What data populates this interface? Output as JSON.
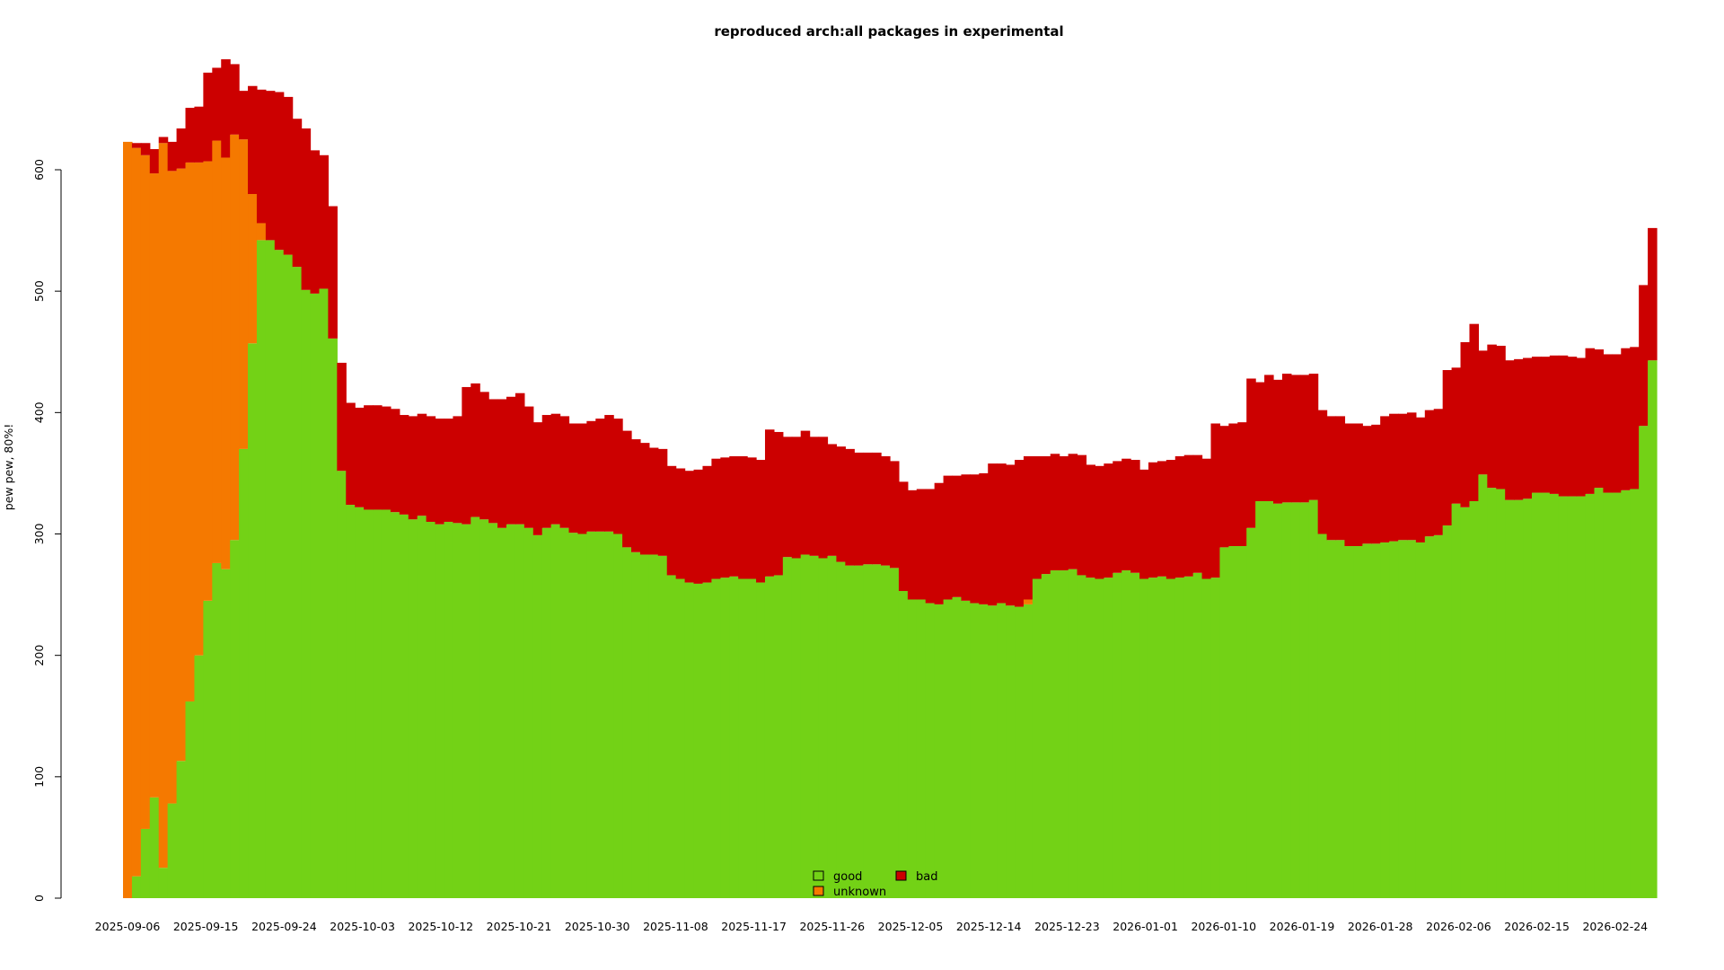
{
  "chart_data": {
    "type": "area",
    "stacked": true,
    "title": "reproduced arch:all packages in experimental",
    "xlabel": "",
    "ylabel": "pew pew, 80%!",
    "ylim": [
      0,
      690
    ],
    "x_start": "2025-09-06",
    "x_end": "2026-02-28",
    "x_tick_labels": [
      "2025-09-06",
      "2025-09-15",
      "2025-09-24",
      "2025-10-03",
      "2025-10-12",
      "2025-10-21",
      "2025-10-30",
      "2025-11-08",
      "2025-11-17",
      "2025-11-26",
      "2025-12-05",
      "2025-12-14",
      "2025-12-23",
      "2026-01-01",
      "2026-01-10",
      "2026-01-19",
      "2026-01-28",
      "2026-02-06",
      "2026-02-15",
      "2026-02-24"
    ],
    "y_ticks": [
      0,
      100,
      200,
      300,
      400,
      500,
      600
    ],
    "legend": {
      "position": "bottom-center",
      "entries": [
        {
          "name": "good",
          "color": "#73d216"
        },
        {
          "name": "bad",
          "color": "#cc0000"
        },
        {
          "name": "unknown",
          "color": "#f57900"
        }
      ]
    },
    "series": [
      {
        "name": "good",
        "color": "#73d216",
        "values": [
          0,
          18,
          57,
          83,
          25,
          78,
          113,
          162,
          200,
          245,
          276,
          271,
          295,
          370,
          457,
          542,
          542,
          534,
          530,
          520,
          501,
          498,
          502,
          461,
          352,
          324,
          322,
          320,
          320,
          320,
          318,
          316,
          312,
          315,
          310,
          308,
          310,
          309,
          308,
          314,
          312,
          309,
          305,
          308,
          308,
          305,
          299,
          305,
          308,
          305,
          301,
          300,
          302,
          302,
          302,
          300,
          289,
          285,
          283,
          283,
          282,
          266,
          263,
          260,
          259,
          260,
          263,
          264,
          265,
          263,
          263,
          260,
          265,
          266,
          281,
          280,
          283,
          282,
          280,
          282,
          277,
          274,
          274,
          275,
          275,
          274,
          272,
          253,
          246,
          246,
          243,
          242,
          246,
          248,
          245,
          243,
          242,
          241,
          243,
          241,
          240,
          242,
          263,
          267,
          270,
          270,
          271,
          266,
          264,
          263,
          264,
          268,
          270,
          268,
          263,
          264,
          265,
          263,
          264,
          265,
          268,
          263,
          264,
          289,
          290,
          290,
          305,
          327,
          327,
          325,
          326,
          326,
          326,
          328,
          300,
          295,
          295,
          290,
          290,
          292,
          292,
          293,
          294,
          295,
          295,
          293,
          298,
          299,
          307,
          325,
          322,
          327,
          349,
          338,
          337,
          328,
          328,
          329,
          334,
          334,
          333,
          331,
          331,
          331,
          333,
          338,
          334,
          334,
          336,
          337,
          389,
          443
        ]
      },
      {
        "name": "unknown",
        "color": "#f57900",
        "values": [
          623,
          600,
          555,
          514,
          597,
          521,
          488,
          444,
          406,
          362,
          348,
          339,
          334,
          255,
          123,
          14,
          0,
          0,
          0,
          0,
          0,
          0,
          0,
          0,
          0,
          0,
          0,
          0,
          0,
          0,
          0,
          0,
          0,
          0,
          0,
          0,
          0,
          0,
          0,
          0,
          0,
          0,
          0,
          0,
          0,
          0,
          0,
          0,
          0,
          0,
          0,
          0,
          0,
          0,
          0,
          0,
          0,
          0,
          0,
          0,
          0,
          0,
          0,
          0,
          0,
          0,
          0,
          0,
          0,
          0,
          0,
          0,
          0,
          0,
          0,
          0,
          0,
          0,
          0,
          0,
          0,
          0,
          0,
          0,
          0,
          0,
          0,
          0,
          0,
          0,
          0,
          0,
          0,
          0,
          0,
          0,
          0,
          0,
          0,
          0,
          0,
          4,
          0,
          0,
          0,
          0,
          0,
          0,
          0,
          0,
          0,
          0,
          0,
          0,
          0,
          0,
          0,
          0,
          0,
          0,
          0,
          0,
          0,
          0,
          0,
          0,
          0,
          0,
          0,
          0,
          0,
          0,
          0,
          0,
          0,
          0,
          0,
          0,
          0,
          0,
          0,
          0,
          0,
          0,
          0,
          0,
          0,
          0,
          0,
          0,
          0,
          0,
          0,
          0,
          0,
          0,
          0,
          0,
          0,
          0,
          0,
          0,
          0,
          0,
          0,
          0,
          0,
          0,
          0,
          0,
          0,
          0,
          0,
          0
        ]
      },
      {
        "name": "bad",
        "color": "#cc0000",
        "values": [
          0,
          4,
          10,
          20,
          5,
          24,
          33,
          45,
          46,
          73,
          60,
          81,
          58,
          40,
          89,
          110,
          123,
          130,
          130,
          122,
          133,
          118,
          110,
          109,
          89,
          84,
          82,
          86,
          86,
          85,
          85,
          82,
          85,
          84,
          87,
          87,
          85,
          88,
          113,
          110,
          105,
          102,
          106,
          105,
          108,
          100,
          93,
          93,
          91,
          92,
          90,
          91,
          91,
          93,
          96,
          95,
          96,
          93,
          92,
          88,
          88,
          90,
          91,
          92,
          94,
          96,
          99,
          99,
          99,
          101,
          100,
          101,
          121,
          118,
          99,
          100,
          102,
          98,
          100,
          92,
          95,
          96,
          93,
          92,
          92,
          90,
          88,
          90,
          90,
          91,
          94,
          100,
          102,
          100,
          104,
          106,
          108,
          117,
          115,
          116,
          121,
          118,
          101,
          97,
          96,
          94,
          95,
          99,
          93,
          93,
          94,
          92,
          92,
          93,
          90,
          95,
          95,
          98,
          100,
          100,
          97,
          99,
          127,
          100,
          101,
          102,
          123,
          98,
          104,
          102,
          106,
          105,
          105,
          104,
          102,
          102,
          102,
          101,
          101,
          97,
          98,
          104,
          105,
          104,
          105,
          103,
          104,
          104,
          128,
          112,
          136,
          146,
          102,
          118,
          118,
          115,
          116,
          116,
          112,
          112,
          114,
          116,
          115,
          114,
          120,
          114,
          114,
          114,
          117,
          117,
          116,
          109
        ]
      }
    ]
  }
}
